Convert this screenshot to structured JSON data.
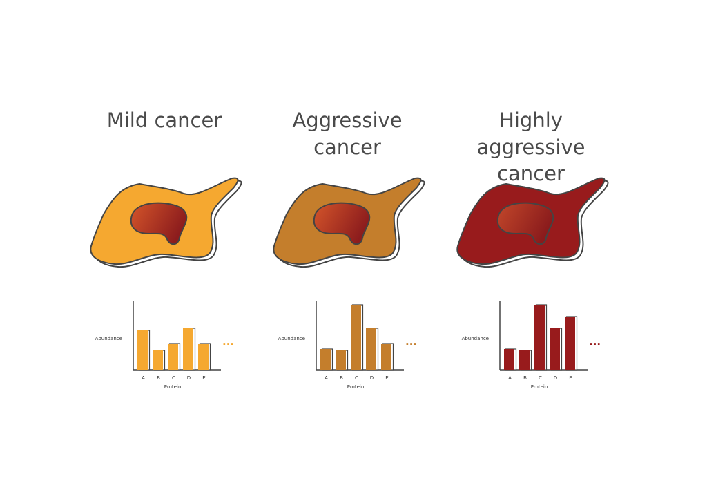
{
  "colors": {
    "mild": "#f5a830",
    "aggressive": "#c47e2c",
    "highly": "#981b1c",
    "nucleus_light": "#d4552a",
    "nucleus_dark": "#8c1c1d",
    "outline": "#444444",
    "title": "#4a4a4a"
  },
  "panels": [
    {
      "id": "mild",
      "title_lines": [
        "Mild cancer"
      ],
      "ylabel": "Abundance",
      "xlabel": "Protein",
      "ellipsis": "...",
      "fill_color": "#f5a830"
    },
    {
      "id": "aggressive",
      "title_lines": [
        "Aggressive",
        "cancer"
      ],
      "ylabel": "Abundance",
      "xlabel": "Protein",
      "ellipsis": "...",
      "fill_color": "#c47e2c"
    },
    {
      "id": "highly",
      "title_lines": [
        "Highly",
        "aggressive",
        "cancer"
      ],
      "ylabel": "Abundance",
      "xlabel": "Protein",
      "ellipsis": "...",
      "fill_color": "#981b1c"
    }
  ],
  "chart_data": [
    {
      "type": "bar",
      "categories": [
        "A",
        "B",
        "C",
        "D",
        "E"
      ],
      "values": [
        57,
        28,
        38,
        60,
        38
      ],
      "xlabel": "Protein",
      "ylabel": "Abundance",
      "ylim": [
        0,
        100
      ],
      "grid": false
    },
    {
      "type": "bar",
      "categories": [
        "A",
        "B",
        "C",
        "D",
        "E"
      ],
      "values": [
        30,
        28,
        94,
        60,
        38
      ],
      "xlabel": "Protein",
      "ylabel": "Abundance",
      "ylim": [
        0,
        100
      ],
      "grid": false
    },
    {
      "type": "bar",
      "categories": [
        "A",
        "B",
        "C",
        "D",
        "E"
      ],
      "values": [
        30,
        28,
        94,
        60,
        77
      ],
      "xlabel": "Protein",
      "ylabel": "Abundance",
      "ylim": [
        0,
        100
      ],
      "grid": false
    }
  ]
}
